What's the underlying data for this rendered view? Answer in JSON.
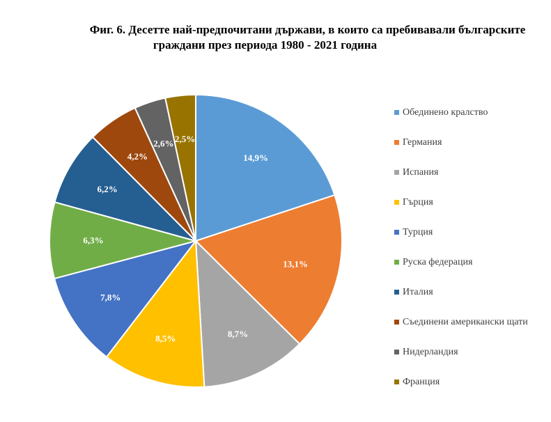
{
  "chart_data": {
    "type": "pie",
    "title_line1": "Фиг. 6. Десетте най-предпочитани държави, в които са пребивавали българските",
    "title_line2": "граждани през периода 1980 - 2021 година",
    "slices": [
      {
        "name": "Обединено кралство",
        "value": 14.9,
        "label": "14,9%",
        "color": "#5B9BD5"
      },
      {
        "name": "Германия",
        "value": 13.1,
        "label": "13,1%",
        "color": "#ED7D31"
      },
      {
        "name": "Испания",
        "value": 8.7,
        "label": "8,7%",
        "color": "#A5A5A5"
      },
      {
        "name": "Гърция",
        "value": 8.5,
        "label": "8,5%",
        "color": "#FFC000"
      },
      {
        "name": "Турция",
        "value": 7.8,
        "label": "7,8%",
        "color": "#4472C4"
      },
      {
        "name": "Руска федерация",
        "value": 6.3,
        "label": "6,3%",
        "color": "#70AD47"
      },
      {
        "name": "Италия",
        "value": 6.2,
        "label": "6,2%",
        "color": "#255E91"
      },
      {
        "name": "Съединени американски щати",
        "value": 4.2,
        "label": "4,2%",
        "color": "#9E480E"
      },
      {
        "name": "Нидерландия",
        "value": 2.6,
        "label": "2,6%",
        "color": "#636363"
      },
      {
        "name": "Франция",
        "value": 2.5,
        "label": "2,5%",
        "color": "#997300"
      }
    ],
    "legend_position": "right"
  }
}
